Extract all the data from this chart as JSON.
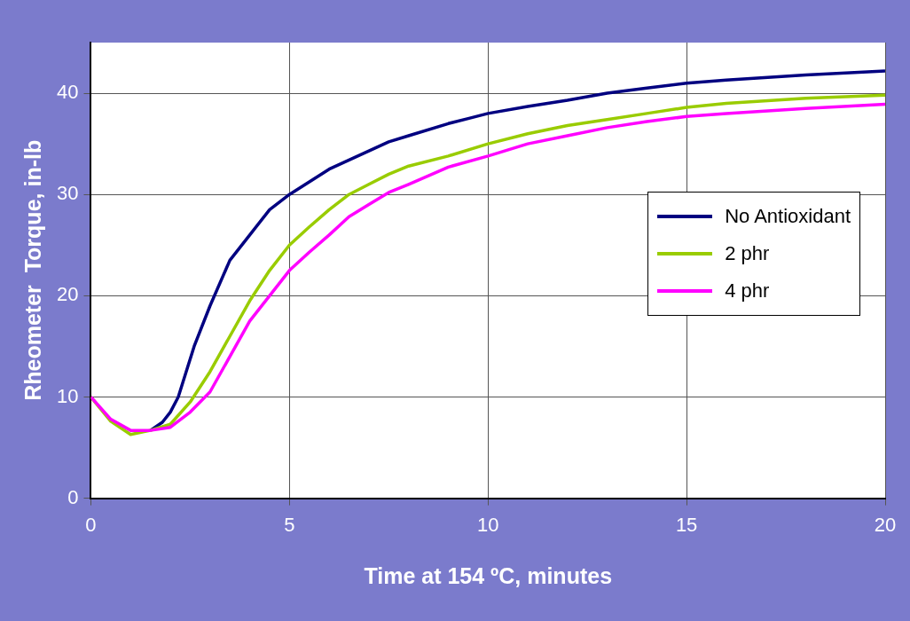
{
  "chart_data": {
    "type": "line",
    "xlabel": "Time at 154 ºC, minutes",
    "ylabel": "Rheometer  Torque, in-lb",
    "xlim": [
      0,
      20
    ],
    "xticks": [
      0,
      5,
      10,
      15,
      20
    ],
    "ylim": [
      0,
      45
    ],
    "yticks": [
      0,
      10,
      20,
      30,
      40
    ],
    "grid": true,
    "legend": "right",
    "marker": "none",
    "line_style": "solid",
    "series": [
      {
        "name": "No Antioxidant",
        "color": "#000080",
        "x": [
          1.5,
          1.8,
          2,
          2.2,
          2.4,
          2.6,
          3,
          3.5,
          4,
          4.5,
          5,
          6,
          7,
          7.5,
          8,
          9,
          9.5,
          10,
          11,
          12,
          13,
          14,
          15,
          16,
          18,
          20
        ],
        "values": [
          6.7,
          7.5,
          8.5,
          10,
          12.5,
          15,
          19,
          23.5,
          26,
          28.5,
          30,
          32.5,
          34.3,
          35.2,
          35.8,
          37,
          37.5,
          38,
          38.7,
          39.3,
          40,
          40.5,
          41,
          41.3,
          41.8,
          42.2
        ]
      },
      {
        "name": "2 phr",
        "color": "#99cc00",
        "x": [
          0,
          0.5,
          1,
          1.5,
          2,
          2.5,
          3,
          3.5,
          4,
          4.5,
          5,
          5.5,
          6,
          6.5,
          7,
          7.5,
          8,
          9,
          10,
          11,
          12,
          13,
          14,
          15,
          16,
          18,
          20
        ],
        "values": [
          10,
          7.6,
          6.3,
          6.7,
          7.3,
          9.5,
          12.5,
          16,
          19.5,
          22.5,
          25,
          26.8,
          28.5,
          30,
          31,
          32,
          32.8,
          33.8,
          35,
          36,
          36.8,
          37.4,
          38,
          38.6,
          39,
          39.5,
          39.8
        ]
      },
      {
        "name": "4 phr",
        "color": "#ff00ff",
        "x": [
          0,
          0.5,
          1,
          1.5,
          2,
          2.5,
          3,
          3.5,
          4,
          4.5,
          5,
          5.5,
          6,
          6.5,
          7,
          7.5,
          8,
          9,
          10,
          11,
          12,
          13,
          14,
          15,
          16,
          18,
          20
        ],
        "values": [
          10,
          7.8,
          6.7,
          6.7,
          7,
          8.5,
          10.5,
          14,
          17.5,
          20,
          22.5,
          24.3,
          26,
          27.8,
          29,
          30.2,
          31,
          32.7,
          33.8,
          35,
          35.8,
          36.6,
          37.2,
          37.7,
          38,
          38.5,
          38.9
        ]
      }
    ]
  }
}
